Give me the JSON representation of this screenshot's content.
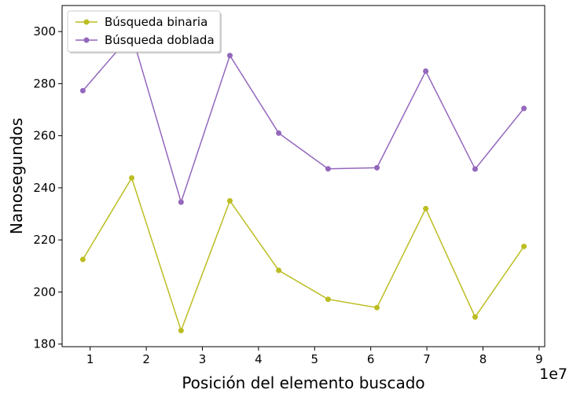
{
  "chart_data": {
    "type": "line",
    "xlabel": "Posición del elemento buscado",
    "ylabel": "Nanosegundos",
    "x_offset_label": "1e7",
    "x_scale": 10000000,
    "xlim": [
      0.5,
      9.1
    ],
    "ylim": [
      179,
      310
    ],
    "x_ticks": [
      1,
      2,
      3,
      4,
      5,
      6,
      7,
      8,
      9
    ],
    "x_tick_labels": [
      "1",
      "2",
      "3",
      "4",
      "5",
      "6",
      "7",
      "8",
      "9"
    ],
    "y_ticks": [
      180,
      200,
      220,
      240,
      260,
      280,
      300
    ],
    "y_tick_labels": [
      "180",
      "200",
      "220",
      "240",
      "260",
      "280",
      "300"
    ],
    "x": [
      0.87,
      1.74,
      2.62,
      3.49,
      4.36,
      5.24,
      6.11,
      6.98,
      7.86,
      8.73
    ],
    "legend_position": "upper-left",
    "grid": false,
    "series": [
      {
        "name": "Búsqueda binaria",
        "color": "#bcbd22",
        "values": [
          212.5,
          243.8,
          185.2,
          235.0,
          208.3,
          197.2,
          194.0,
          232.0,
          190.4,
          217.5
        ]
      },
      {
        "name": "Búsqueda doblada",
        "color": "#9467bd",
        "values": [
          277.3,
          299.0,
          234.5,
          290.8,
          261.0,
          247.3,
          247.7,
          284.8,
          247.2,
          270.5
        ]
      }
    ]
  }
}
